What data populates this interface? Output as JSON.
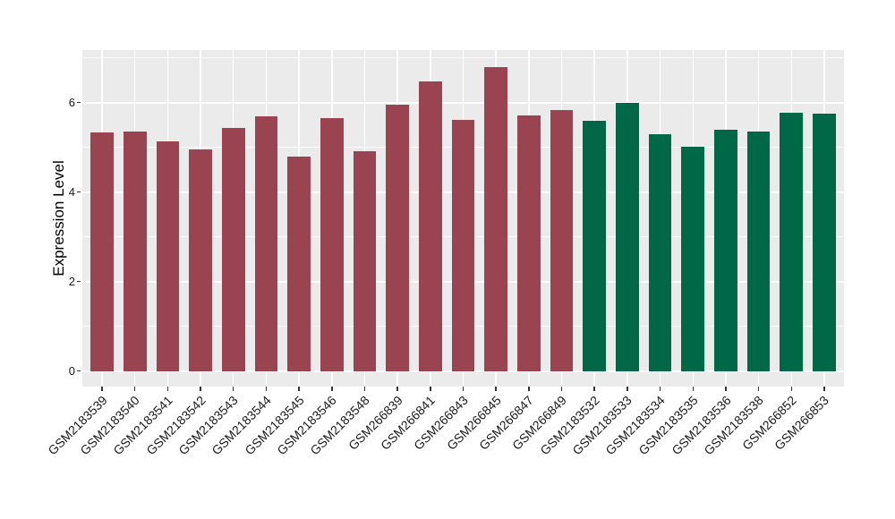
{
  "chart_data": {
    "type": "bar",
    "title": "",
    "xlabel": "",
    "ylabel": "Expression Level",
    "ylim": [
      -0.35,
      7.17
    ],
    "yticks": [
      0,
      2,
      4,
      6
    ],
    "minor_ticks": [
      1,
      3,
      5,
      7
    ],
    "grid": "on",
    "legend": "none",
    "panel_background": "#EBEBEB",
    "gridline_color": "#ffffff",
    "colors": {
      "group1": "#9A4351",
      "group2": "#006747"
    },
    "categories": [
      "GSM2183539",
      "GSM2183540",
      "GSM2183541",
      "GSM2183542",
      "GSM2183543",
      "GSM2183544",
      "GSM2183545",
      "GSM2183546",
      "GSM2183548",
      "GSM266839",
      "GSM266841",
      "GSM266843",
      "GSM266845",
      "GSM266847",
      "GSM266849",
      "GSM2183532",
      "GSM2183533",
      "GSM2183534",
      "GSM2183535",
      "GSM2183536",
      "GSM2183538",
      "GSM266852",
      "GSM266853"
    ],
    "bars": [
      {
        "label": "GSM2183539",
        "value": 5.33,
        "group": "group1"
      },
      {
        "label": "GSM2183540",
        "value": 5.36,
        "group": "group1"
      },
      {
        "label": "GSM2183541",
        "value": 5.13,
        "group": "group1"
      },
      {
        "label": "GSM2183542",
        "value": 4.95,
        "group": "group1"
      },
      {
        "label": "GSM2183543",
        "value": 5.43,
        "group": "group1"
      },
      {
        "label": "GSM2183544",
        "value": 5.69,
        "group": "group1"
      },
      {
        "label": "GSM2183545",
        "value": 4.79,
        "group": "group1"
      },
      {
        "label": "GSM2183546",
        "value": 5.66,
        "group": "group1"
      },
      {
        "label": "GSM2183548",
        "value": 4.92,
        "group": "group1"
      },
      {
        "label": "GSM266839",
        "value": 5.95,
        "group": "group1"
      },
      {
        "label": "GSM266841",
        "value": 6.47,
        "group": "group1"
      },
      {
        "label": "GSM266843",
        "value": 5.62,
        "group": "group1"
      },
      {
        "label": "GSM266845",
        "value": 6.8,
        "group": "group1"
      },
      {
        "label": "GSM266847",
        "value": 5.71,
        "group": "group1"
      },
      {
        "label": "GSM266849",
        "value": 5.84,
        "group": "group1"
      },
      {
        "label": "GSM2183532",
        "value": 5.59,
        "group": "group2"
      },
      {
        "label": "GSM2183533",
        "value": 5.99,
        "group": "group2"
      },
      {
        "label": "GSM2183534",
        "value": 5.29,
        "group": "group2"
      },
      {
        "label": "GSM2183535",
        "value": 5.02,
        "group": "group2"
      },
      {
        "label": "GSM2183536",
        "value": 5.39,
        "group": "group2"
      },
      {
        "label": "GSM2183538",
        "value": 5.35,
        "group": "group2"
      },
      {
        "label": "GSM266852",
        "value": 5.77,
        "group": "group2"
      },
      {
        "label": "GSM266853",
        "value": 5.75,
        "group": "group2"
      }
    ]
  }
}
